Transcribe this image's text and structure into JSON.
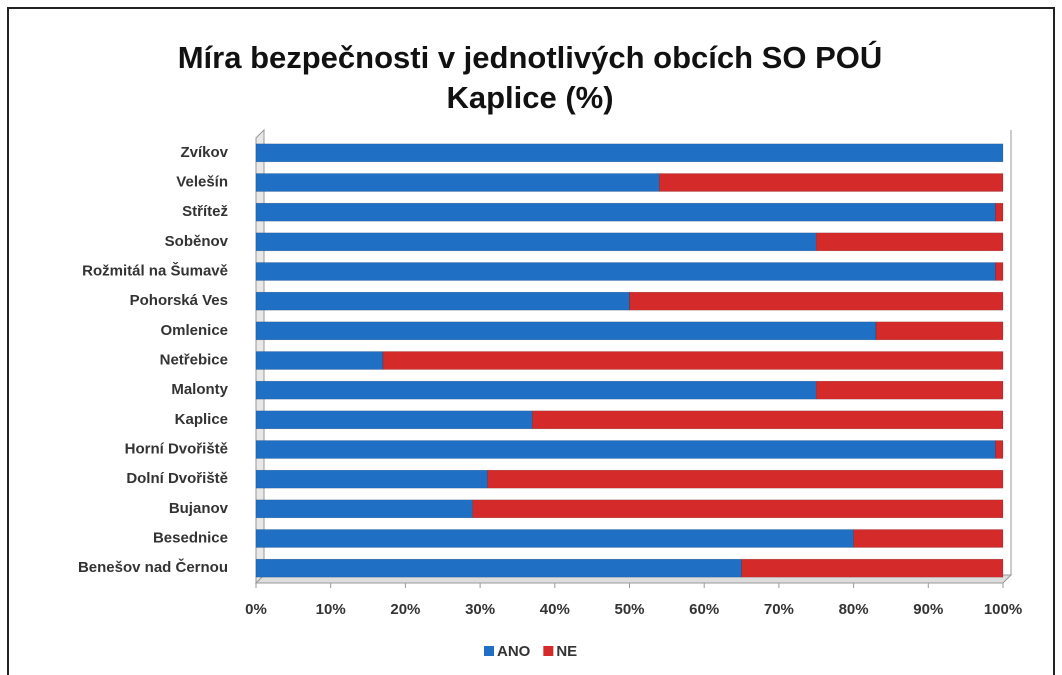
{
  "chart_data": {
    "type": "stacked_barh",
    "title": "Míra bezpečnosti v jednotlivých obcích  SO POÚ Kaplice (%)",
    "categories": [
      "Zvíkov",
      "Velešín",
      "Střítež",
      "Soběnov",
      "Rožmitál na Šumavě",
      "Pohorská Ves",
      "Omlenice",
      "Netřebice",
      "Malonty",
      "Kaplice",
      "Horní Dvořiště",
      "Dolní Dvořiště",
      "Bujanov",
      "Besednice",
      "Benešov nad Černou"
    ],
    "series": [
      {
        "name": "ANO",
        "color": "#1f6fc5",
        "values": [
          100,
          54,
          99,
          75,
          99,
          50,
          83,
          17,
          75,
          37,
          99,
          31,
          29,
          80,
          65
        ]
      },
      {
        "name": "NE",
        "color": "#d42a2a",
        "values": [
          0,
          46,
          1,
          25,
          1,
          50,
          17,
          83,
          25,
          63,
          1,
          69,
          71,
          20,
          35
        ]
      }
    ],
    "xlim": [
      0,
      100
    ],
    "xticks": [
      {
        "value": 0,
        "label": "0%"
      },
      {
        "value": 10,
        "label": "10%"
      },
      {
        "value": 20,
        "label": "20%"
      },
      {
        "value": 30,
        "label": "30%"
      },
      {
        "value": 40,
        "label": "40%"
      },
      {
        "value": 50,
        "label": "50%"
      },
      {
        "value": 60,
        "label": "60%"
      },
      {
        "value": 70,
        "label": "70%"
      },
      {
        "value": 80,
        "label": "80%"
      },
      {
        "value": 90,
        "label": "90%"
      },
      {
        "value": 100,
        "label": "100%"
      }
    ],
    "legend": "bottom"
  }
}
